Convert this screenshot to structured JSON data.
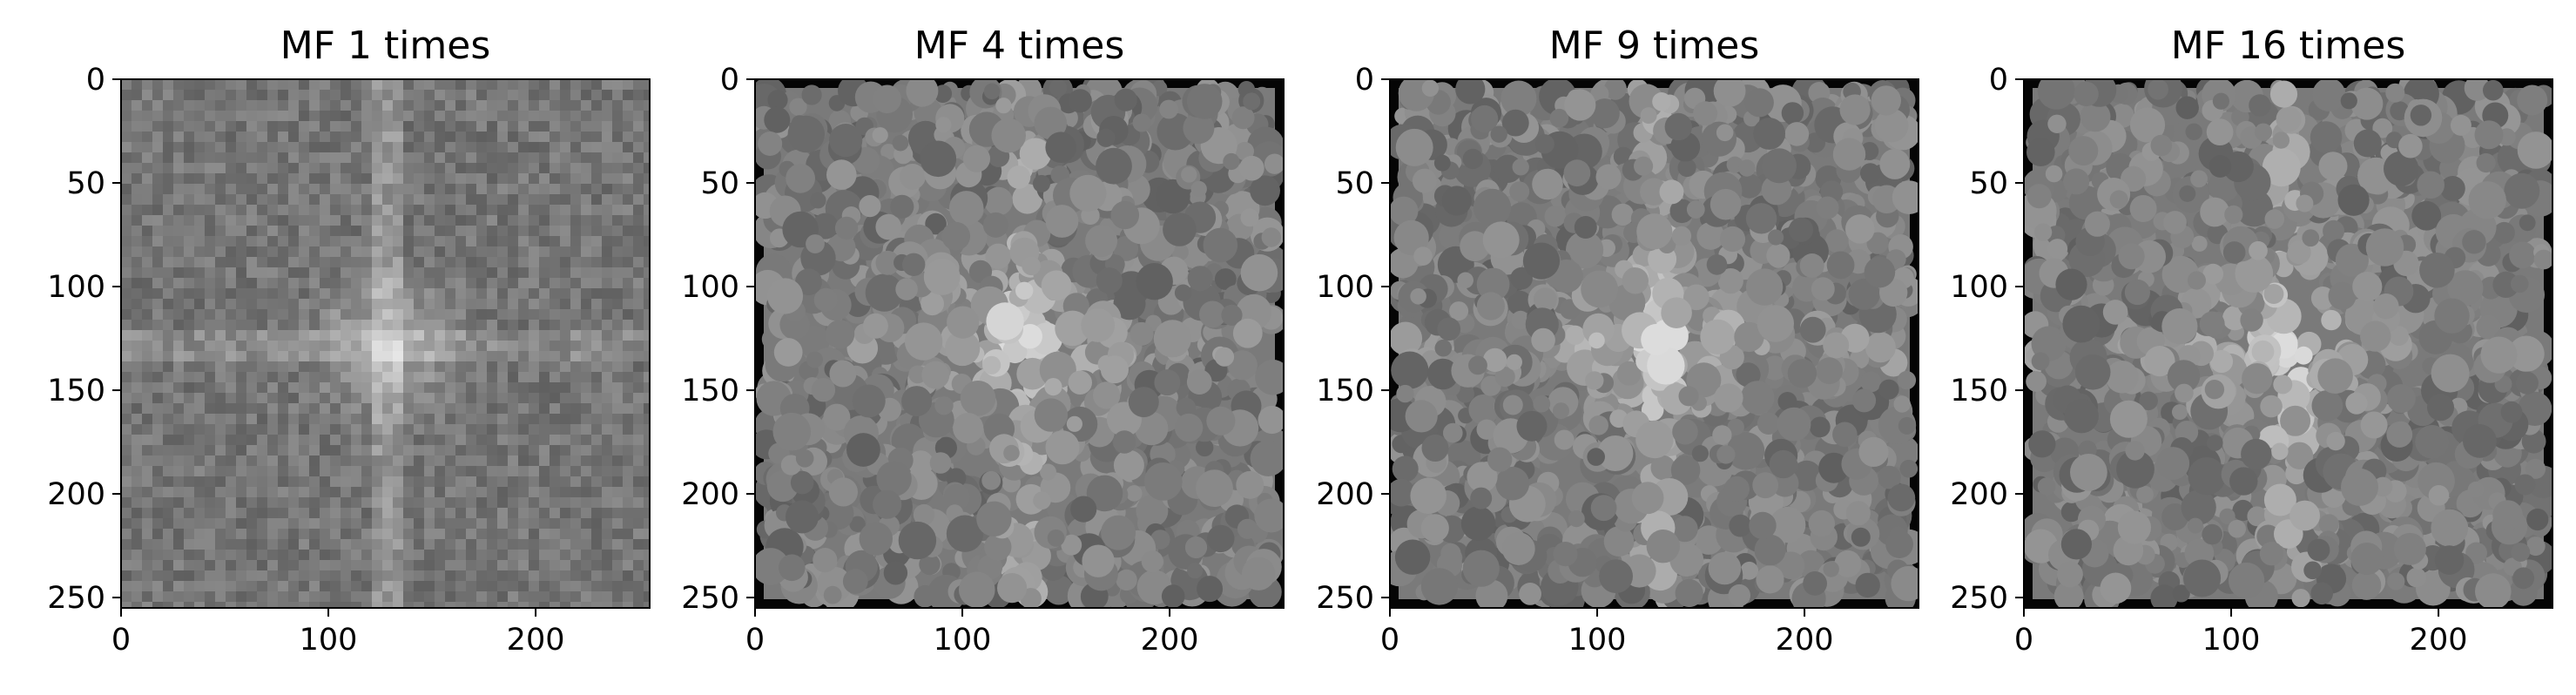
{
  "chart_data": [
    {
      "type": "heatmap",
      "title": "MF 1 times",
      "colormap": "gray",
      "xlim": [
        0,
        255
      ],
      "ylim": [
        255,
        0
      ],
      "xticks": [
        0,
        100,
        200
      ],
      "yticks": [
        0,
        50,
        100,
        150,
        200,
        250
      ],
      "texture": "fine",
      "black_border": false,
      "center_peak": [
        128,
        128
      ],
      "grid": false
    },
    {
      "type": "heatmap",
      "title": "MF 4 times",
      "colormap": "gray",
      "xlim": [
        0,
        255
      ],
      "ylim": [
        255,
        0
      ],
      "xticks": [
        0,
        100,
        200
      ],
      "yticks": [
        0,
        50,
        100,
        150,
        200,
        250
      ],
      "texture": "blocky",
      "black_border": true,
      "center_peak": [
        128,
        128
      ],
      "grid": false
    },
    {
      "type": "heatmap",
      "title": "MF 9 times",
      "colormap": "gray",
      "xlim": [
        0,
        255
      ],
      "ylim": [
        255,
        0
      ],
      "xticks": [
        0,
        100,
        200
      ],
      "yticks": [
        0,
        50,
        100,
        150,
        200,
        250
      ],
      "texture": "blocky",
      "black_border": true,
      "center_peak": [
        128,
        128
      ],
      "grid": false
    },
    {
      "type": "heatmap",
      "title": "MF 16 times",
      "colormap": "gray",
      "xlim": [
        0,
        255
      ],
      "ylim": [
        255,
        0
      ],
      "xticks": [
        0,
        100,
        200
      ],
      "yticks": [
        0,
        50,
        100,
        150,
        200,
        250
      ],
      "texture": "blocky",
      "black_border": true,
      "center_peak": [
        128,
        128
      ],
      "grid": false
    }
  ]
}
